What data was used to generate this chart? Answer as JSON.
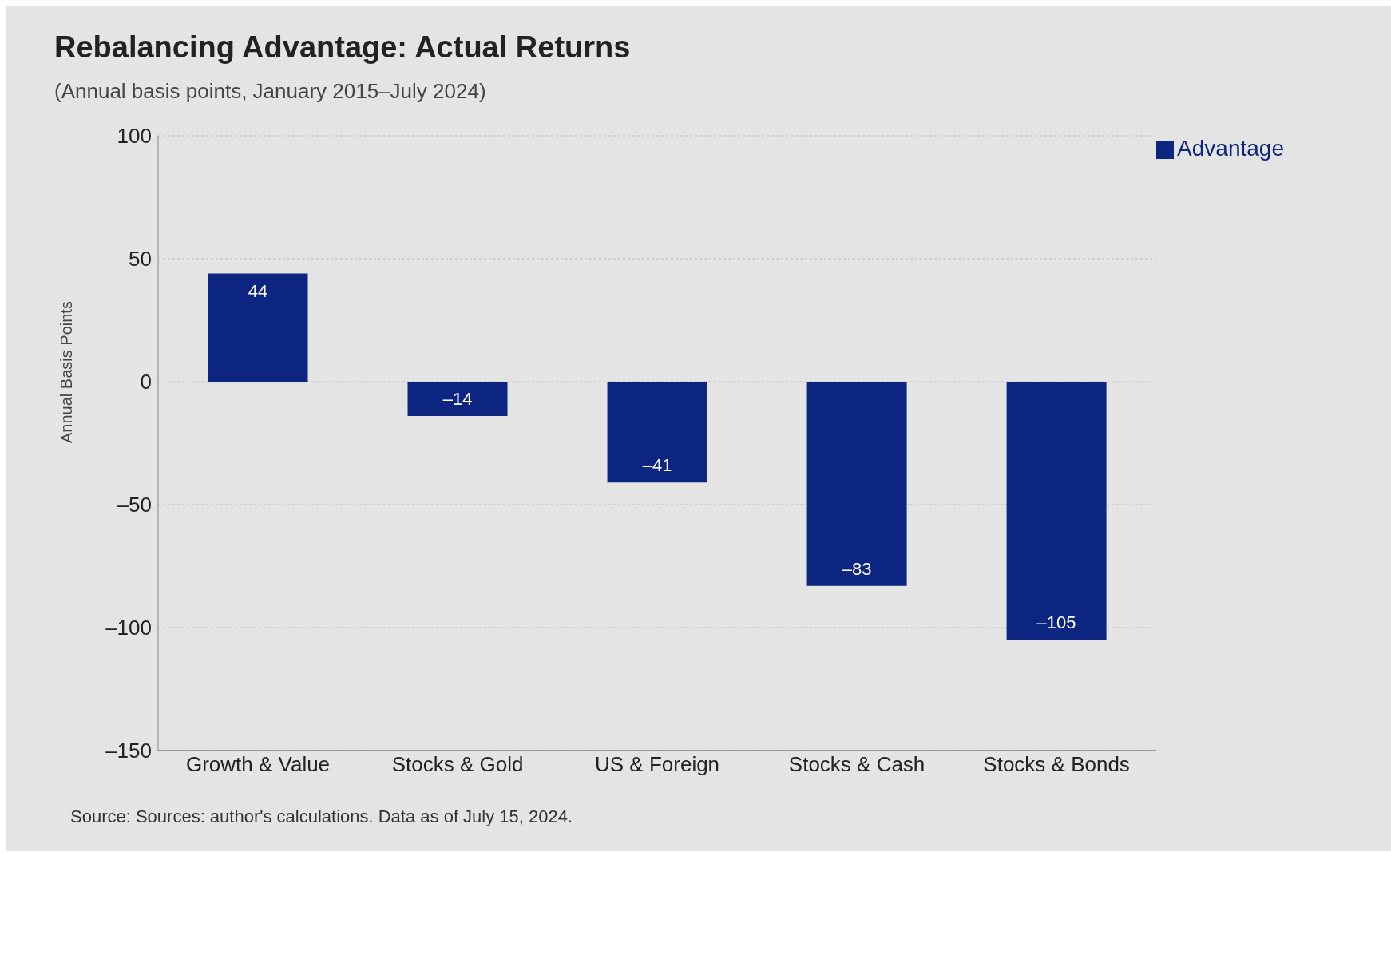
{
  "chart_data": {
    "type": "bar",
    "title": "Rebalancing Advantage: Actual Returns",
    "subtitle": "(Annual basis points, January 2015–July 2024)",
    "ylabel": "Annual Basis Points",
    "categories": [
      "Growth & Value",
      "Stocks & Gold",
      "US & Foreign",
      "Stocks & Cash",
      "Stocks & Bonds"
    ],
    "series": [
      {
        "name": "Advantage",
        "color": "#0b2580",
        "values": [
          44,
          -14,
          -41,
          -83,
          -105
        ]
      }
    ],
    "value_labels": [
      "44",
      "–14",
      "–41",
      "–83",
      "–105"
    ],
    "ylim": [
      -150,
      100
    ],
    "yticks": [
      100,
      50,
      0,
      {
        "value": -50,
        "label": "–50"
      },
      {
        "value": -100,
        "label": "–100"
      },
      {
        "value": -150,
        "label": "–150"
      }
    ],
    "grid": "y",
    "legend": "top right",
    "annotations": [
      "Source: Sources: author's calculations. Data as of July 15, 2024."
    ]
  }
}
